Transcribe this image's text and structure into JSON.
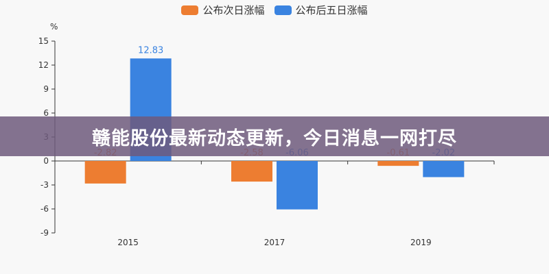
{
  "legend": [
    {
      "label": "公布次日涨幅",
      "color": "#ed7d31"
    },
    {
      "label": "公布后五日涨幅",
      "color": "#3a83e0"
    }
  ],
  "yaxis_unit": "%",
  "banner": {
    "text": "赣能股份最新动态更新，今日消息一网打尽"
  },
  "chart_data": {
    "type": "bar",
    "title": "",
    "xlabel": "",
    "ylabel": "%",
    "categories": [
      "2015",
      "2017",
      "2019"
    ],
    "series": [
      {
        "name": "公布次日涨幅",
        "color": "#ed7d31",
        "values": [
          -2.82,
          -2.58,
          -0.61
        ]
      },
      {
        "name": "公布后五日涨幅",
        "color": "#3a83e0",
        "values": [
          12.83,
          -6.06,
          -2.02
        ]
      }
    ],
    "ylim": [
      -9,
      15
    ],
    "yticks": [
      15,
      12,
      9,
      6,
      3,
      0,
      -3,
      -6,
      -9
    ],
    "grid": false,
    "legend_position": "top"
  }
}
